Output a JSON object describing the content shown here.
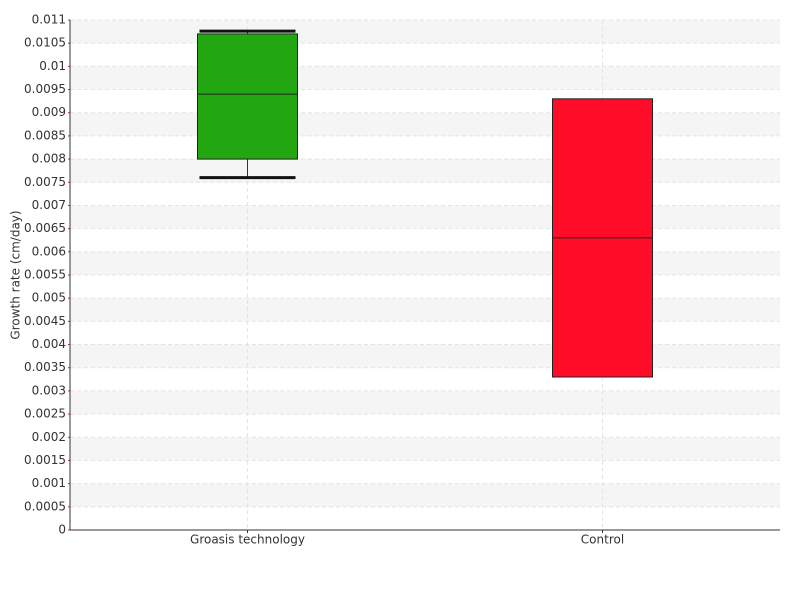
{
  "chart_data": {
    "type": "box",
    "y_label": "Growth rate (cm/day)",
    "categories": [
      "Groasis technology",
      "Control"
    ],
    "boxes": [
      {
        "color": "#22a712",
        "min": 0.0076,
        "q1": 0.008,
        "median": 0.0094,
        "q3": 0.0107,
        "max": 0.01076
      },
      {
        "color": "#ff0c28",
        "min": 0.0033,
        "q1": 0.0033,
        "median": 0.0063,
        "q3": 0.0093,
        "max": 0.0093
      }
    ],
    "ylim": [
      0,
      0.011
    ],
    "yticks": [
      0,
      0.0005,
      0.001,
      0.0015,
      0.002,
      0.0025,
      0.003,
      0.0035,
      0.004,
      0.0045,
      0.005,
      0.0055,
      0.006,
      0.0065,
      0.007,
      0.0075,
      0.008,
      0.0085,
      0.009,
      0.0095,
      0.01,
      0.0105,
      0.011
    ],
    "grid": true
  }
}
